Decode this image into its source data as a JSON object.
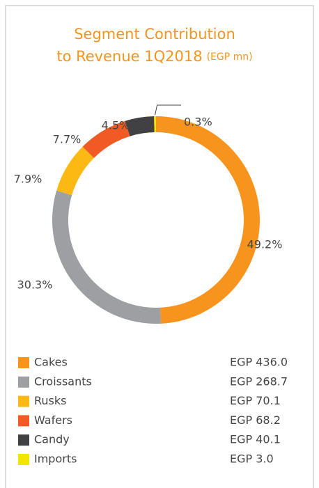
{
  "chart_data": {
    "type": "donut",
    "title": "Segment Contribution",
    "title_line2": "to Revenue 1Q2018",
    "title_unit": "(EGP mn)",
    "categories": [
      "Cakes",
      "Croissants",
      "Rusks",
      "Wafers",
      "Candy",
      "Imports"
    ],
    "values": [
      436.0,
      268.7,
      70.1,
      68.2,
      40.1,
      3.0
    ],
    "value_labels": [
      "EGP 436.0",
      "EGP 268.7",
      "EGP 70.1",
      "EGP 68.2",
      "EGP 40.1",
      "EGP 3.0"
    ],
    "percentages": [
      49.2,
      30.3,
      7.9,
      7.7,
      4.5,
      0.3
    ],
    "percentage_labels": [
      "49.2%",
      "30.3%",
      "7.9%",
      "7.7%",
      "4.5%",
      "0.3%"
    ],
    "colors": [
      "#f7941d",
      "#9d9fa2",
      "#fdb913",
      "#f15a24",
      "#414042",
      "#f2e500"
    ],
    "legend": "bottom"
  }
}
